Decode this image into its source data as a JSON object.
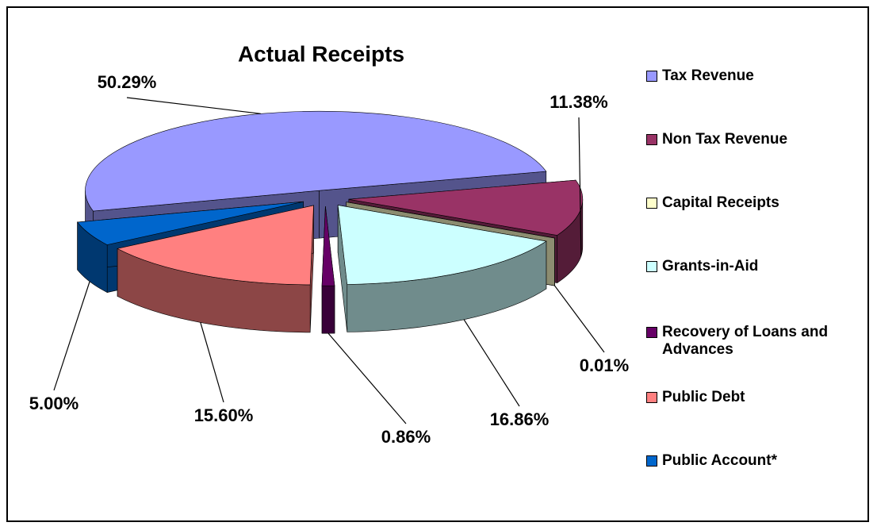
{
  "chart_data": {
    "type": "pie",
    "title": "Actual Receipts",
    "categories": [
      "Tax Revenue",
      "Non Tax Revenue",
      "Capital Receipts",
      "Grants-in-Aid",
      "Recovery of Loans and Advances",
      "Public Debt",
      "Public Account*"
    ],
    "values": [
      50.29,
      11.38,
      0.01,
      16.86,
      0.86,
      15.6,
      5.0
    ],
    "value_labels": [
      "50.29%",
      "11.38%",
      "0.01%",
      "16.86%",
      "0.86%",
      "15.60%",
      "5.00%"
    ],
    "colors": [
      "#9999ff",
      "#993366",
      "#ffffcc",
      "#ccffff",
      "#660066",
      "#ff8080",
      "#0066cc"
    ],
    "legend": "right"
  }
}
